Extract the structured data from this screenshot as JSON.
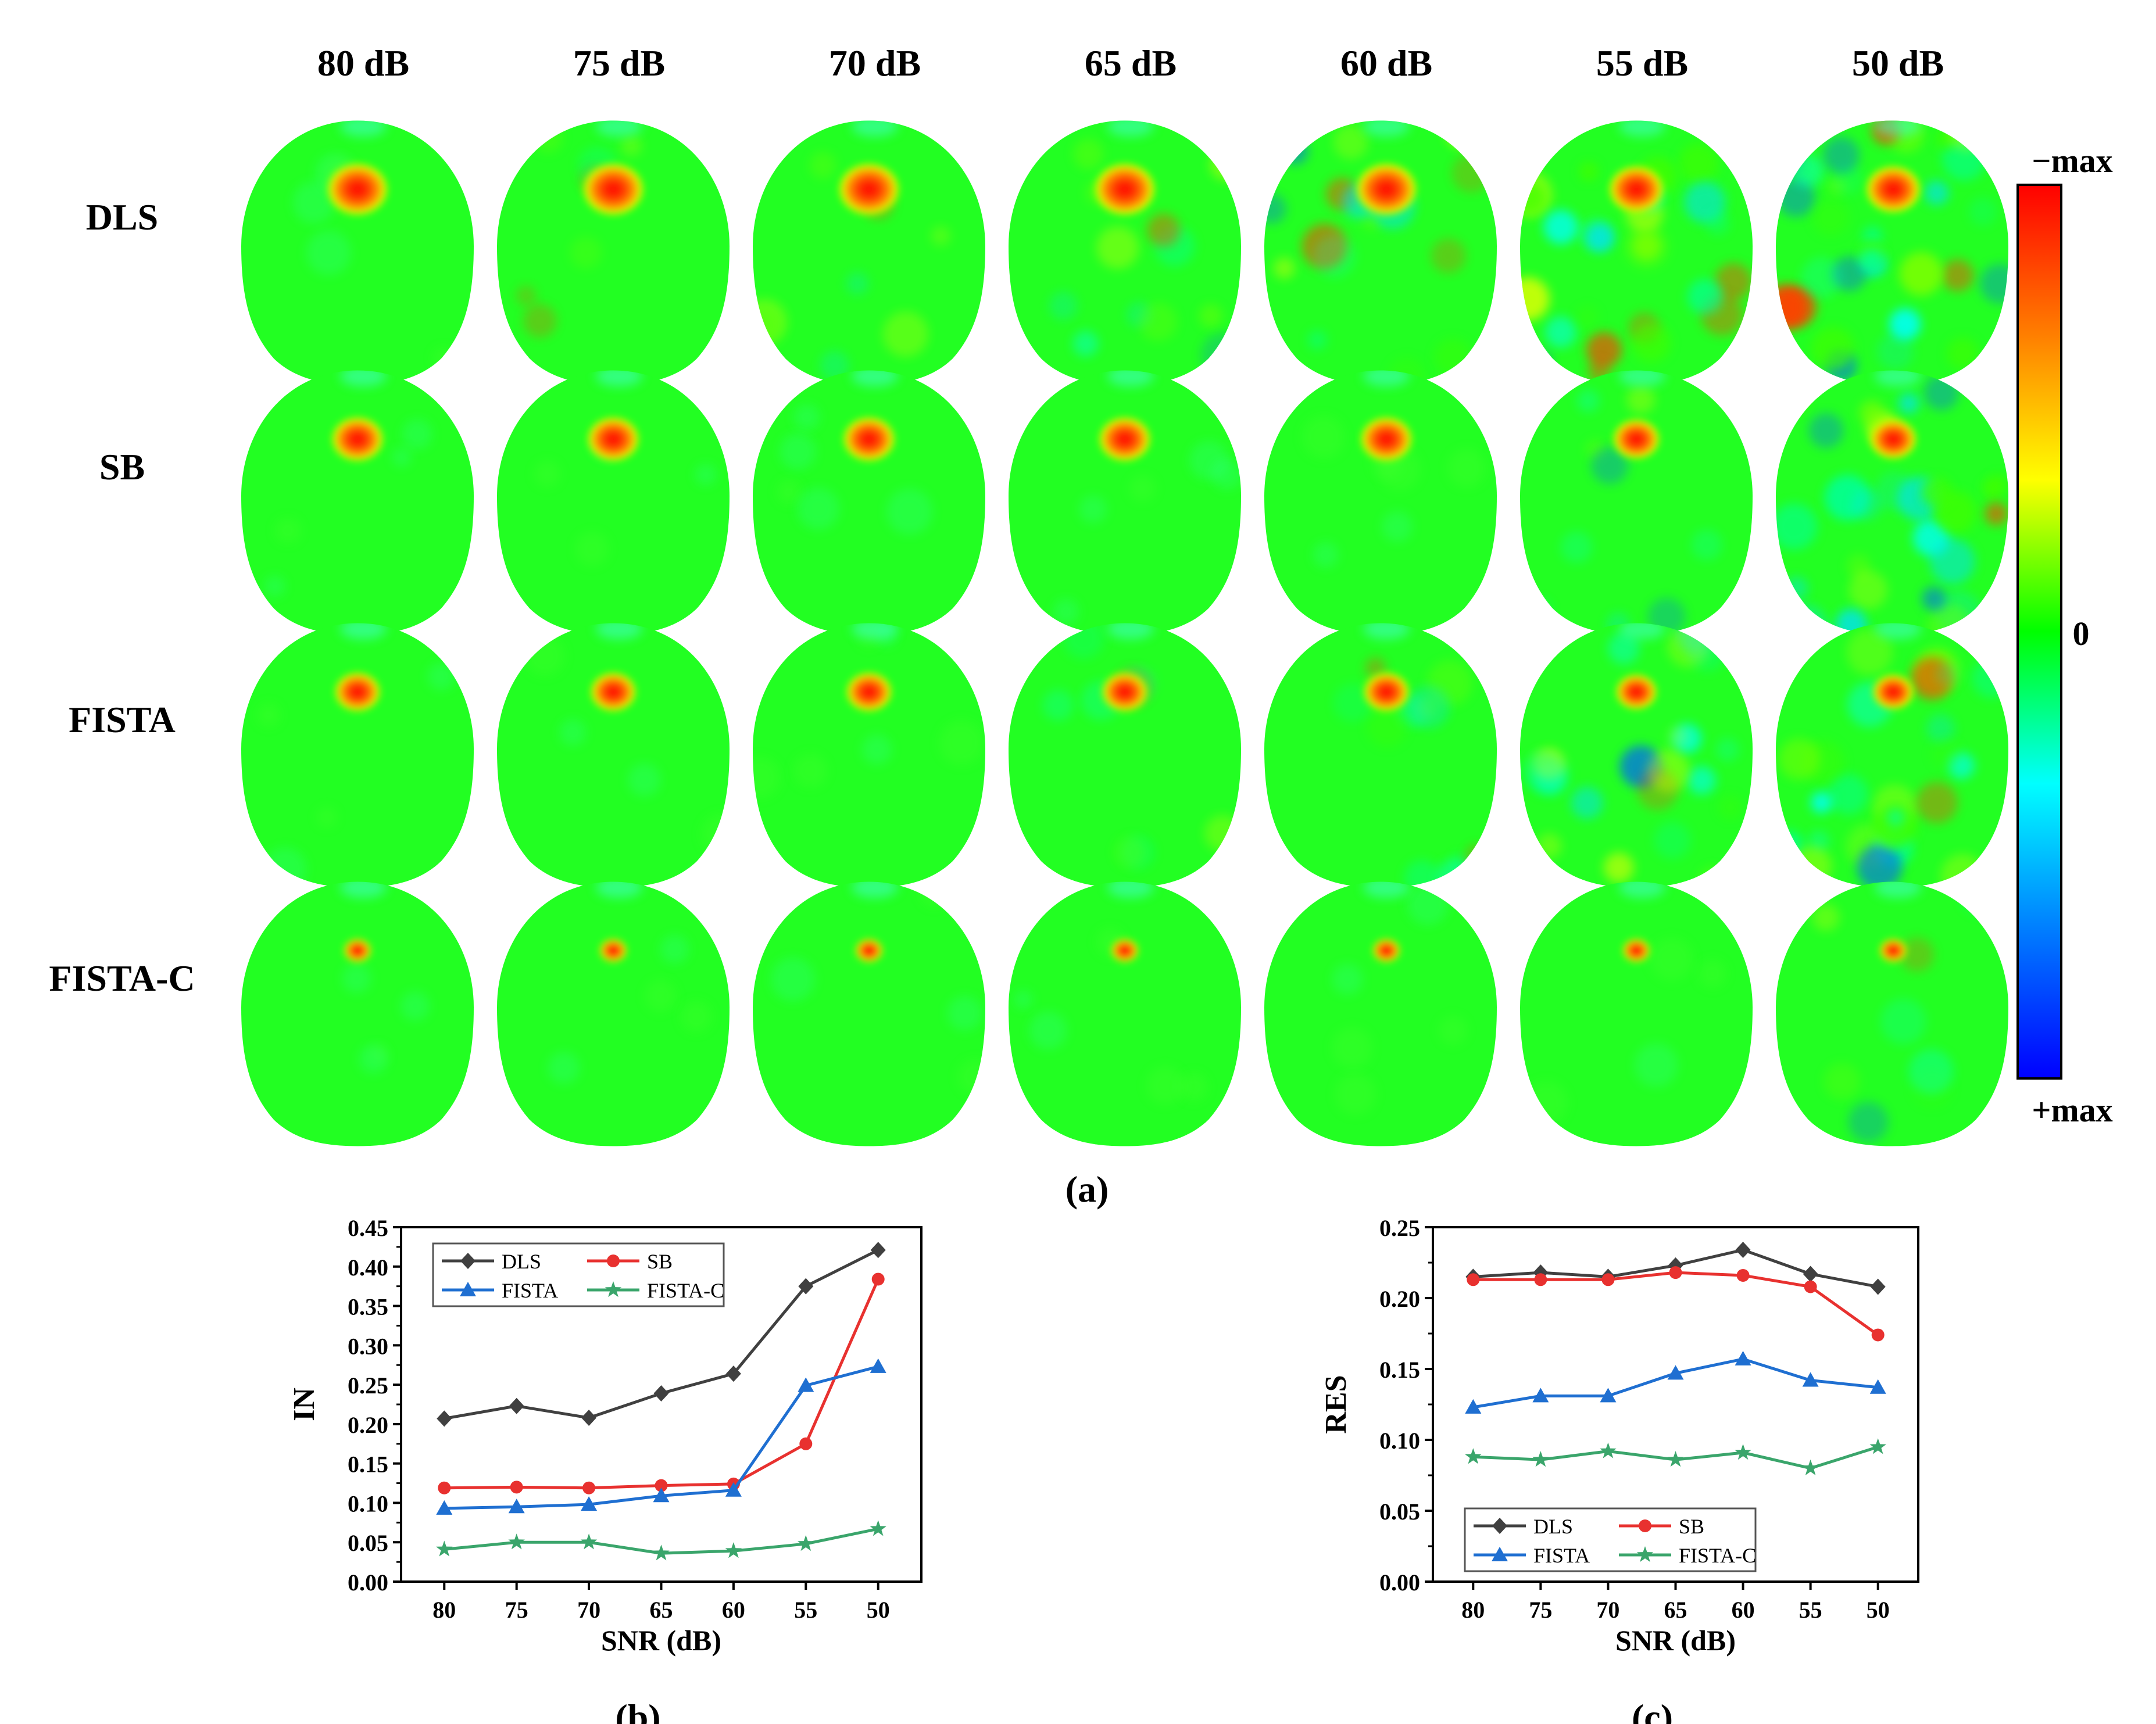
{
  "heatmap_grid": {
    "snr_labels": [
      "80 dB",
      "75 dB",
      "70 dB",
      "65 dB",
      "60 dB",
      "55 dB",
      "50 dB"
    ],
    "method_labels": [
      "DLS",
      "SB",
      "FISTA",
      "FISTA-C"
    ],
    "noise_levels": [
      [
        0.05,
        0.1,
        0.15,
        0.3,
        0.45,
        0.8,
        1.0
      ],
      [
        0.0,
        0.0,
        0.02,
        0.05,
        0.08,
        0.2,
        0.85
      ],
      [
        0.02,
        0.04,
        0.06,
        0.15,
        0.25,
        0.7,
        0.8
      ],
      [
        0.0,
        0.0,
        0.0,
        0.02,
        0.03,
        0.05,
        0.15
      ]
    ],
    "spot_sizes": [
      1.0,
      0.85,
      0.75,
      0.45
    ],
    "panel_label": "(a)"
  },
  "colorbar": {
    "top_label": "−max",
    "mid_label": "0",
    "bottom_label": "+max",
    "colors": [
      "#ff0000",
      "#ff8000",
      "#ffff00",
      "#00ff00",
      "#00ffff",
      "#0080ff",
      "#0000ff"
    ]
  },
  "chart_data": [
    {
      "type": "line",
      "panel_label": "(b)",
      "title": "",
      "xlabel": "SNR (dB)",
      "ylabel": "IN",
      "categories": [
        "80",
        "75",
        "70",
        "65",
        "60",
        "55",
        "50"
      ],
      "ylim": [
        0,
        0.45
      ],
      "yticks": [
        "0.00",
        "0.05",
        "0.10",
        "0.15",
        "0.20",
        "0.25",
        "0.30",
        "0.35",
        "0.40",
        "0.45"
      ],
      "legend_position": "top-left",
      "series": [
        {
          "name": "DLS",
          "color": "#404040",
          "marker": "diamond",
          "values": [
            0.207,
            0.223,
            0.208,
            0.239,
            0.264,
            0.375,
            0.421
          ]
        },
        {
          "name": "SB",
          "color": "#e8312f",
          "marker": "circle",
          "values": [
            0.119,
            0.12,
            0.119,
            0.122,
            0.124,
            0.175,
            0.384
          ]
        },
        {
          "name": "FISTA",
          "color": "#1f6fd1",
          "marker": "triangle",
          "values": [
            0.093,
            0.095,
            0.098,
            0.109,
            0.116,
            0.249,
            0.273
          ]
        },
        {
          "name": "FISTA-C",
          "color": "#3aa56b",
          "marker": "star",
          "values": [
            0.041,
            0.05,
            0.05,
            0.036,
            0.039,
            0.048,
            0.067
          ]
        }
      ]
    },
    {
      "type": "line",
      "panel_label": "(c)",
      "title": "",
      "xlabel": "SNR (dB)",
      "ylabel": "RES",
      "categories": [
        "80",
        "75",
        "70",
        "65",
        "60",
        "55",
        "50"
      ],
      "ylim": [
        0,
        0.25
      ],
      "yticks": [
        "0.00",
        "0.05",
        "0.10",
        "0.15",
        "0.20",
        "0.25"
      ],
      "legend_position": "bottom-left",
      "series": [
        {
          "name": "DLS",
          "color": "#404040",
          "marker": "diamond",
          "values": [
            0.215,
            0.218,
            0.215,
            0.223,
            0.234,
            0.217,
            0.208
          ]
        },
        {
          "name": "SB",
          "color": "#e8312f",
          "marker": "circle",
          "values": [
            0.213,
            0.213,
            0.213,
            0.218,
            0.216,
            0.208,
            0.174
          ]
        },
        {
          "name": "FISTA",
          "color": "#1f6fd1",
          "marker": "triangle",
          "values": [
            0.123,
            0.131,
            0.131,
            0.147,
            0.157,
            0.142,
            0.137
          ]
        },
        {
          "name": "FISTA-C",
          "color": "#3aa56b",
          "marker": "star",
          "values": [
            0.088,
            0.086,
            0.092,
            0.086,
            0.091,
            0.08,
            0.095
          ]
        }
      ]
    }
  ]
}
